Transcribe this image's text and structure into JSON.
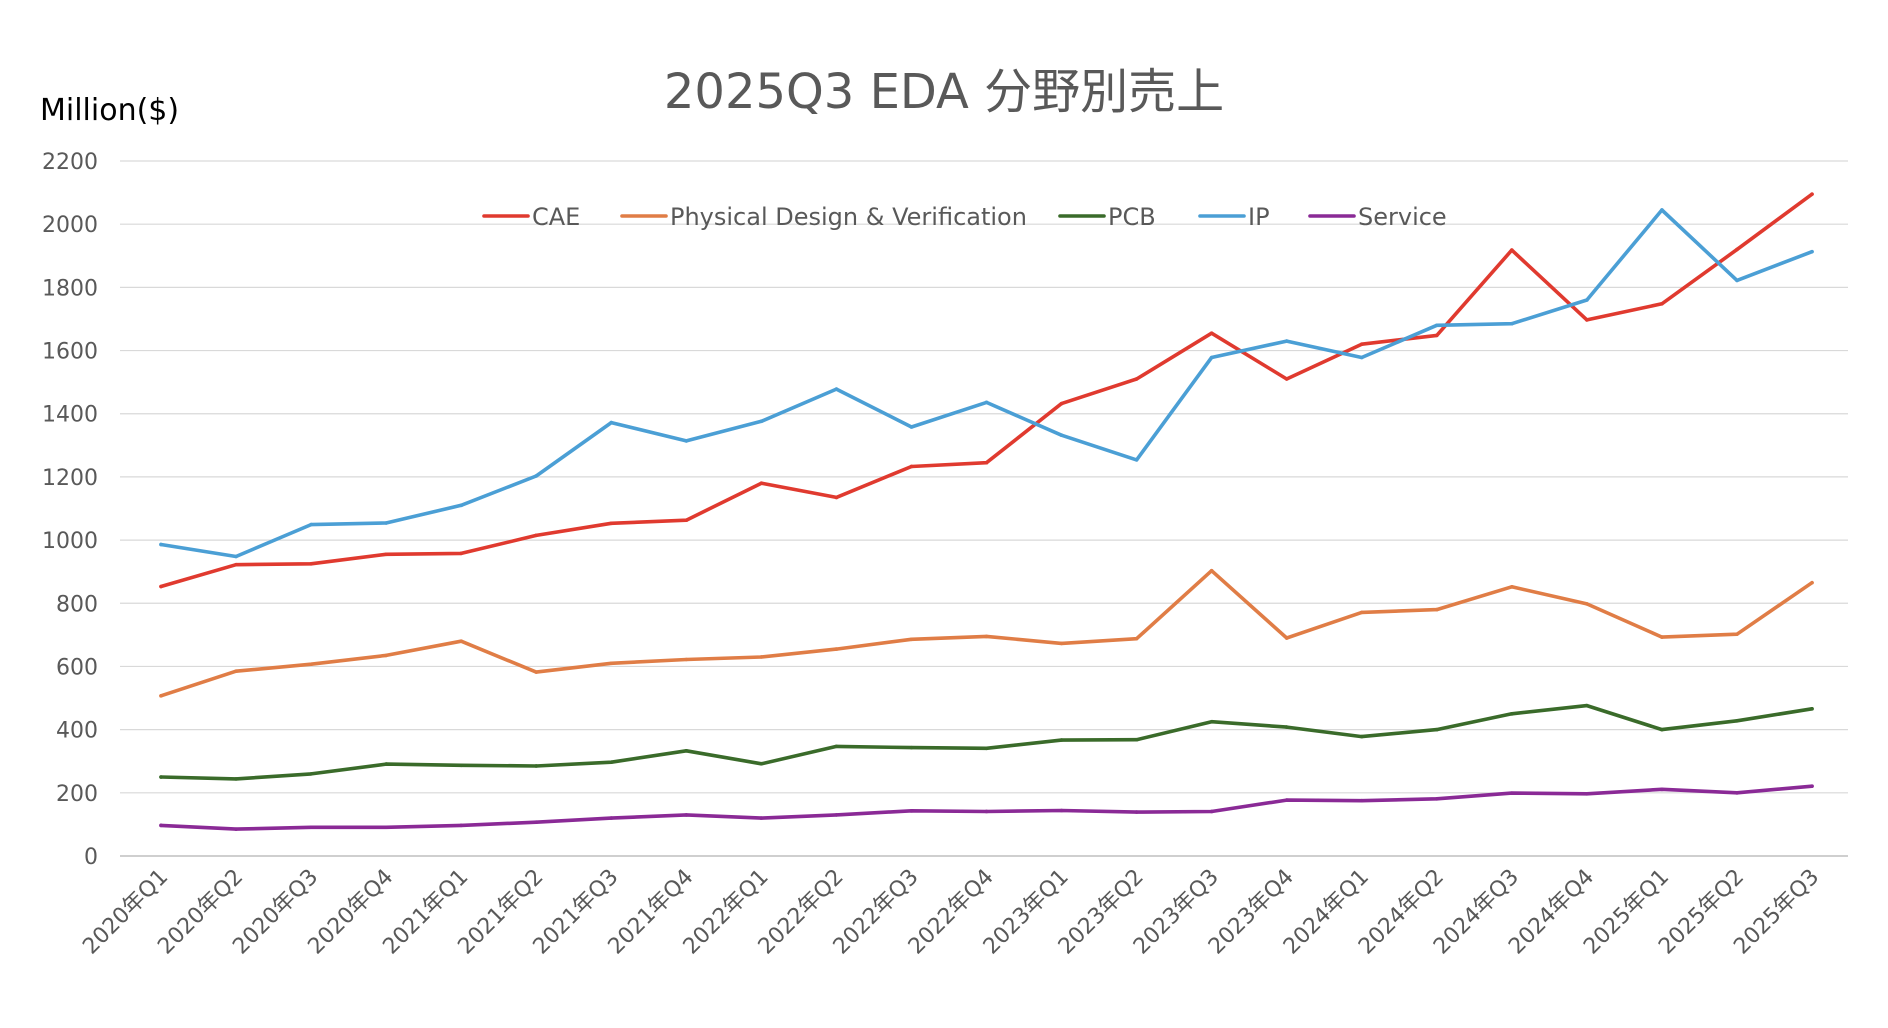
{
  "chart_data": {
    "type": "line",
    "title": "2025Q3  EDA 分野別売上",
    "ylabel": "Million($)",
    "xlabel": "",
    "ylim": [
      0,
      2200
    ],
    "yticks": [
      0,
      200,
      400,
      600,
      800,
      1000,
      1200,
      1400,
      1600,
      1800,
      2000,
      2200
    ],
    "grid": true,
    "legend_position": "top-center",
    "categories": [
      "2020年Q1",
      "2020年Q2",
      "2020年Q3",
      "2020年Q4",
      "2021年Q1",
      "2021年Q2",
      "2021年Q3",
      "2021年Q4",
      "2022年Q1",
      "2022年Q2",
      "2022年Q3",
      "2022年Q4",
      "2023年Q1",
      "2023年Q2",
      "2023年Q3",
      "2023年Q4",
      "2024年Q1",
      "2024年Q2",
      "2024年Q3",
      "2024年Q4",
      "2025年Q1",
      "2025年Q2",
      "2025年Q3"
    ],
    "series": [
      {
        "name": "CAE",
        "color": "#e03a2f",
        "values": [
          853,
          922,
          925,
          955,
          958,
          1015,
          1053,
          1063,
          1180,
          1135,
          1233,
          1245,
          1432,
          1510,
          1655,
          1510,
          1620,
          1648,
          1918,
          1697,
          1748,
          1920,
          2095
        ]
      },
      {
        "name": "Physical Design & Verification",
        "color": "#e07d46",
        "values": [
          507,
          585,
          607,
          635,
          680,
          582,
          610,
          622,
          630,
          655,
          686,
          695,
          673,
          688,
          903,
          690,
          771,
          780,
          852,
          798,
          693,
          702,
          865
        ]
      },
      {
        "name": "PCB",
        "color": "#3a6b2a",
        "values": [
          250,
          244,
          260,
          291,
          287,
          285,
          297,
          333,
          292,
          347,
          343,
          341,
          367,
          368,
          425,
          408,
          378,
          400,
          450,
          476,
          400,
          428,
          466
        ]
      },
      {
        "name": "IP",
        "color": "#4b9fd5",
        "values": [
          986,
          948,
          1049,
          1054,
          1110,
          1203,
          1372,
          1314,
          1376,
          1478,
          1358,
          1436,
          1332,
          1254,
          1578,
          1630,
          1578,
          1680,
          1685,
          1760,
          2045,
          1822,
          1913
        ]
      },
      {
        "name": "Service",
        "color": "#8a2a96",
        "values": [
          97,
          85,
          91,
          91,
          97,
          107,
          120,
          130,
          120,
          130,
          143,
          141,
          144,
          139,
          141,
          177,
          175,
          181,
          199,
          197,
          211,
          200,
          221
        ]
      }
    ]
  }
}
